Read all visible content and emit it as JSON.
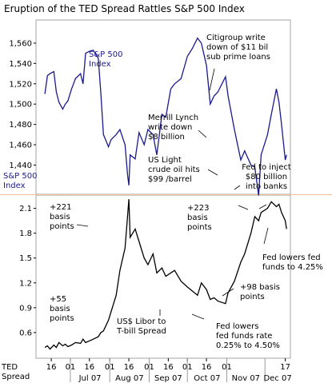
{
  "chart_data": [
    {
      "type": "line",
      "title": "Eruption of the TED Spread Rattles S&P 500 Index",
      "ylabel": "S&P 500 Index",
      "ylim": [
        1412,
        1582
      ],
      "yticks": [
        1440,
        1460,
        1480,
        1500,
        1520,
        1540,
        1560
      ],
      "ytick_labels": [
        "1,440",
        "1,460",
        "1,480",
        "1,500",
        "1,520",
        "1,540",
        "1,560"
      ],
      "series": [
        {
          "name": "S&P 500 Index",
          "color": "#1a1a8c",
          "x": [
            "2007-06-11",
            "2007-06-13",
            "2007-06-15",
            "2007-06-18",
            "2007-06-20",
            "2007-06-22",
            "2007-06-25",
            "2007-06-27",
            "2007-06-29",
            "2007-07-02",
            "2007-07-05",
            "2007-07-09",
            "2007-07-11",
            "2007-07-13",
            "2007-07-16",
            "2007-07-19",
            "2007-07-23",
            "2007-07-25",
            "2007-07-27",
            "2007-07-31",
            "2007-08-02",
            "2007-08-06",
            "2007-08-09",
            "2007-08-13",
            "2007-08-15",
            "2007-08-16",
            "2007-08-17",
            "2007-08-21",
            "2007-08-24",
            "2007-08-28",
            "2007-08-31",
            "2007-09-04",
            "2007-09-07",
            "2007-09-11",
            "2007-09-14",
            "2007-09-18",
            "2007-09-21",
            "2007-09-26",
            "2007-10-01",
            "2007-10-05",
            "2007-10-09",
            "2007-10-12",
            "2007-10-16",
            "2007-10-19",
            "2007-10-22",
            "2007-10-25",
            "2007-10-31",
            "2007-11-02",
            "2007-11-07",
            "2007-11-12",
            "2007-11-15",
            "2007-11-20",
            "2007-11-23",
            "2007-11-26",
            "2007-11-28",
            "2007-12-03",
            "2007-12-06",
            "2007-12-10",
            "2007-12-12",
            "2007-12-14",
            "2007-12-17",
            "2007-12-18"
          ],
          "y": [
            1510,
            1528,
            1530,
            1532,
            1512,
            1502,
            1495,
            1500,
            1503,
            1515,
            1525,
            1530,
            1520,
            1550,
            1552,
            1553,
            1545,
            1510,
            1470,
            1458,
            1465,
            1470,
            1475,
            1460,
            1430,
            1420,
            1450,
            1446,
            1472,
            1460,
            1475,
            1470,
            1450,
            1490,
            1487,
            1515,
            1520,
            1525,
            1547,
            1555,
            1565,
            1560,
            1538,
            1500,
            1508,
            1512,
            1527,
            1508,
            1475,
            1445,
            1454,
            1440,
            1438,
            1410,
            1450,
            1470,
            1490,
            1515,
            1502,
            1480,
            1445,
            1450
          ]
        }
      ]
    },
    {
      "type": "line",
      "ylabel": "TED Spread",
      "ylim": [
        0.3,
        2.25
      ],
      "yticks": [
        0.6,
        0.9,
        1.2,
        1.5,
        1.8,
        2.1
      ],
      "ytick_labels": [
        "0.6",
        "0.9",
        "1.2",
        "1.5",
        "1.8",
        "2.1"
      ],
      "categories": [
        "16",
        "01",
        "16",
        "01",
        "16",
        "01",
        "16",
        "01",
        "16",
        "01",
        "17"
      ],
      "months": [
        "Jul 07",
        "Aug 07",
        "Sep 07",
        "Oct 07",
        "Nov 07",
        "Dec 07"
      ],
      "series": [
        {
          "name": "US$ Libor to T-bill Spread",
          "color": "#000000",
          "x": [
            "2007-06-11",
            "2007-06-13",
            "2007-06-15",
            "2007-06-18",
            "2007-06-20",
            "2007-06-22",
            "2007-06-25",
            "2007-06-27",
            "2007-06-29",
            "2007-07-02",
            "2007-07-05",
            "2007-07-09",
            "2007-07-11",
            "2007-07-13",
            "2007-07-16",
            "2007-07-19",
            "2007-07-23",
            "2007-07-25",
            "2007-07-27",
            "2007-07-31",
            "2007-08-02",
            "2007-08-06",
            "2007-08-09",
            "2007-08-13",
            "2007-08-15",
            "2007-08-16",
            "2007-08-17",
            "2007-08-21",
            "2007-08-24",
            "2007-08-28",
            "2007-08-31",
            "2007-09-04",
            "2007-09-07",
            "2007-09-11",
            "2007-09-14",
            "2007-09-18",
            "2007-09-21",
            "2007-09-26",
            "2007-10-01",
            "2007-10-05",
            "2007-10-09",
            "2007-10-12",
            "2007-10-16",
            "2007-10-19",
            "2007-10-22",
            "2007-10-25",
            "2007-10-31",
            "2007-11-02",
            "2007-11-07",
            "2007-11-12",
            "2007-11-15",
            "2007-11-20",
            "2007-11-23",
            "2007-11-26",
            "2007-11-28",
            "2007-12-03",
            "2007-12-06",
            "2007-12-10",
            "2007-12-12",
            "2007-12-14",
            "2007-12-17",
            "2007-12-18"
          ],
          "y": [
            0.42,
            0.44,
            0.4,
            0.45,
            0.42,
            0.48,
            0.44,
            0.46,
            0.43,
            0.45,
            0.48,
            0.47,
            0.52,
            0.48,
            0.5,
            0.52,
            0.55,
            0.6,
            0.62,
            0.75,
            0.85,
            1.05,
            1.35,
            1.62,
            2.01,
            2.21,
            1.75,
            1.85,
            1.7,
            1.5,
            1.42,
            1.55,
            1.32,
            1.38,
            1.28,
            1.32,
            1.35,
            1.22,
            1.15,
            1.1,
            1.05,
            1.2,
            1.12,
            1.0,
            1.02,
            0.98,
            0.95,
            1.08,
            1.22,
            1.45,
            1.55,
            1.8,
            2.0,
            1.95,
            2.05,
            2.1,
            2.18,
            2.12,
            2.15,
            2.05,
            1.95,
            1.85
          ]
        }
      ]
    }
  ],
  "annotations": [
    {
      "id": "citigroup",
      "lines": [
        "Citigroup write",
        "down of $11 bil",
        "sub prime loans"
      ]
    },
    {
      "id": "merrill",
      "lines": [
        "Merrill Lynch",
        "write down",
        "$8 billion"
      ]
    },
    {
      "id": "oil",
      "lines": [
        "US Light",
        "crude oil hits",
        "$99 /barrel"
      ]
    },
    {
      "id": "fed-inject",
      "lines": [
        "Fed to inject",
        "$80 billion",
        "into banks"
      ]
    },
    {
      "id": "bp221",
      "lines": [
        "+221",
        "basis",
        "points"
      ]
    },
    {
      "id": "bp223",
      "lines": [
        "+223",
        "basis",
        "points"
      ]
    },
    {
      "id": "fed-lowers-425",
      "lines": [
        "Fed lowers fed",
        "funds to 4.25%"
      ]
    },
    {
      "id": "bp55",
      "lines": [
        "+55",
        "basis",
        "points"
      ]
    },
    {
      "id": "bp98",
      "lines": [
        "+98 basis",
        "points"
      ]
    },
    {
      "id": "libor",
      "lines": [
        "US$ Libor to",
        "T-bill Spread"
      ]
    },
    {
      "id": "fed-lowers-rate",
      "lines": [
        "Fed lowers",
        "fed funds rate",
        "0.25% to 4.50%"
      ]
    }
  ]
}
